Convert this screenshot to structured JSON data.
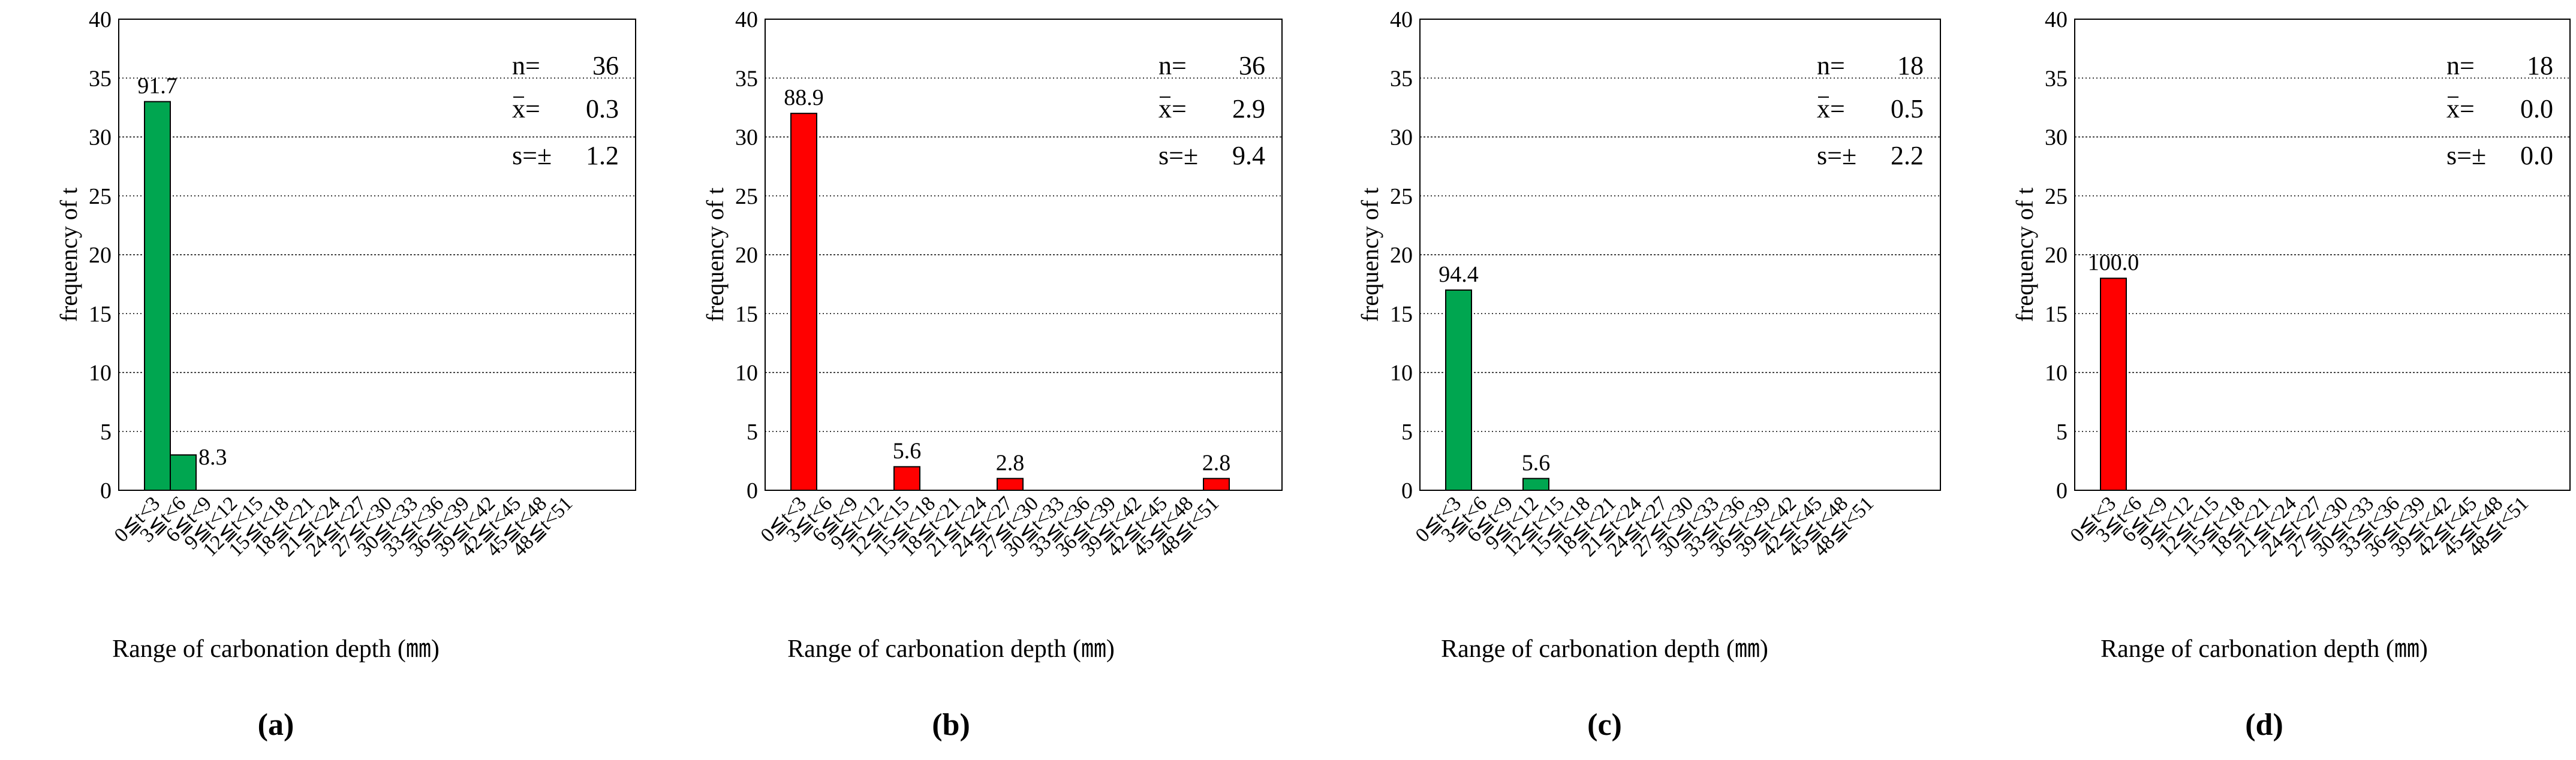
{
  "figure": {
    "panels": [
      "(a)",
      "(b)",
      "(c)",
      "(d)"
    ]
  },
  "chart_data": [
    {
      "type": "bar",
      "panel_label": "a",
      "title": "",
      "ylabel": "frequency of t",
      "xlabel": "Range of carbonation depth (㎜)",
      "ylim": [
        0,
        40
      ],
      "yticks": [
        "0",
        "5",
        "10",
        "15",
        "20",
        "25",
        "30",
        "35",
        "40"
      ],
      "categories": [
        "0≦t<3",
        "3≦t<6",
        "6≦t<9",
        "9≦t<12",
        "12≦t<15",
        "15≦t<18",
        "18≦t<21",
        "21≦t<24",
        "24≦t<27",
        "27≦t<30",
        "30≦t<33",
        "33≦t<36",
        "36≦t<39",
        "39≦t<42",
        "42≦t<45",
        "45≦t<48",
        "48≦t<51"
      ],
      "values": [
        33,
        3,
        0,
        0,
        0,
        0,
        0,
        0,
        0,
        0,
        0,
        0,
        0,
        0,
        0,
        0,
        0
      ],
      "data_labels": [
        "91.7",
        "8.3",
        "",
        "",
        "",
        "",
        "",
        "",
        "",
        "",
        "",
        "",
        "",
        "",
        "",
        "",
        ""
      ],
      "bar_color": "#00a650",
      "stats": [
        {
          "label": "n=",
          "value": "36"
        },
        {
          "label": "x=",
          "value": "0.3"
        },
        {
          "label": "s=±",
          "value": "1.2"
        }
      ],
      "grid": true
    },
    {
      "type": "bar",
      "panel_label": "b",
      "title": "",
      "ylabel": "frequency of t",
      "xlabel": "Range of carbonation depth (㎜)",
      "ylim": [
        0,
        40
      ],
      "yticks": [
        "0",
        "5",
        "10",
        "15",
        "20",
        "25",
        "30",
        "35",
        "40"
      ],
      "categories": [
        "0≦t<3",
        "3≦t<6",
        "6≦t<9",
        "9≦t<12",
        "12≦t<15",
        "15≦t<18",
        "18≦t<21",
        "21≦t<24",
        "24≦t<27",
        "27≦t<30",
        "30≦t<33",
        "33≦t<36",
        "36≦t<39",
        "39≦t<42",
        "42≦t<45",
        "45≦t<48",
        "48≦t<51"
      ],
      "values": [
        32,
        0,
        0,
        0,
        2,
        0,
        0,
        0,
        1,
        0,
        0,
        0,
        0,
        0,
        0,
        0,
        1
      ],
      "data_labels": [
        "88.9",
        "",
        "",
        "",
        "5.6",
        "",
        "",
        "",
        "2.8",
        "",
        "",
        "",
        "",
        "",
        "",
        "",
        "2.8"
      ],
      "bar_color": "#ff0000",
      "stats": [
        {
          "label": "n=",
          "value": "36"
        },
        {
          "label": "x=",
          "value": "2.9"
        },
        {
          "label": "s=±",
          "value": "9.4"
        }
      ],
      "grid": true
    },
    {
      "type": "bar",
      "panel_label": "c",
      "title": "",
      "ylabel": "frequency of t",
      "xlabel": "Range of carbonation depth (㎜)",
      "ylim": [
        0,
        40
      ],
      "yticks": [
        "0",
        "5",
        "10",
        "15",
        "20",
        "25",
        "30",
        "35",
        "40"
      ],
      "categories": [
        "0≦t<3",
        "3≦t<6",
        "6≦t<9",
        "9≦t<12",
        "12≦t<15",
        "15≦t<18",
        "18≦t<21",
        "21≦t<24",
        "24≦t<27",
        "27≦t<30",
        "30≦t<33",
        "33≦t<36",
        "36≦t<39",
        "39≦t<42",
        "42≦t<45",
        "45≦t<48",
        "48≦t<51"
      ],
      "values": [
        17,
        0,
        0,
        1,
        0,
        0,
        0,
        0,
        0,
        0,
        0,
        0,
        0,
        0,
        0,
        0,
        0
      ],
      "data_labels": [
        "94.4",
        "",
        "",
        "5.6",
        "",
        "",
        "",
        "",
        "",
        "",
        "",
        "",
        "",
        "",
        "",
        "",
        ""
      ],
      "bar_color": "#00a650",
      "stats": [
        {
          "label": "n=",
          "value": "18"
        },
        {
          "label": "x=",
          "value": "0.5"
        },
        {
          "label": "s=±",
          "value": "2.2"
        }
      ],
      "grid": true
    },
    {
      "type": "bar",
      "panel_label": "d",
      "title": "",
      "ylabel": "frequency of t",
      "xlabel": "Range of carbonation depth (㎜)",
      "ylim": [
        0,
        40
      ],
      "yticks": [
        "0",
        "5",
        "10",
        "15",
        "20",
        "25",
        "30",
        "35",
        "40"
      ],
      "categories": [
        "0≦t<3",
        "3≦t<6",
        "6≦t<9",
        "9≦t<12",
        "12≦t<15",
        "15≦t<18",
        "18≦t<21",
        "21≦t<24",
        "24≦t<27",
        "27≦t<30",
        "30≦t<33",
        "33≦t<36",
        "36≦t<39",
        "39≦t<42",
        "42≦t<45",
        "45≦t<48",
        "48≦t<51"
      ],
      "values": [
        18,
        0,
        0,
        0,
        0,
        0,
        0,
        0,
        0,
        0,
        0,
        0,
        0,
        0,
        0,
        0,
        0
      ],
      "data_labels": [
        "100.0",
        "",
        "",
        "",
        "",
        "",
        "",
        "",
        "",
        "",
        "",
        "",
        "",
        "",
        "",
        "",
        ""
      ],
      "bar_color": "#ff0000",
      "stats": [
        {
          "label": "n=",
          "value": "18"
        },
        {
          "label": "x=",
          "value": "0.0"
        },
        {
          "label": "s=±",
          "value": "0.0"
        }
      ],
      "grid": true
    }
  ]
}
